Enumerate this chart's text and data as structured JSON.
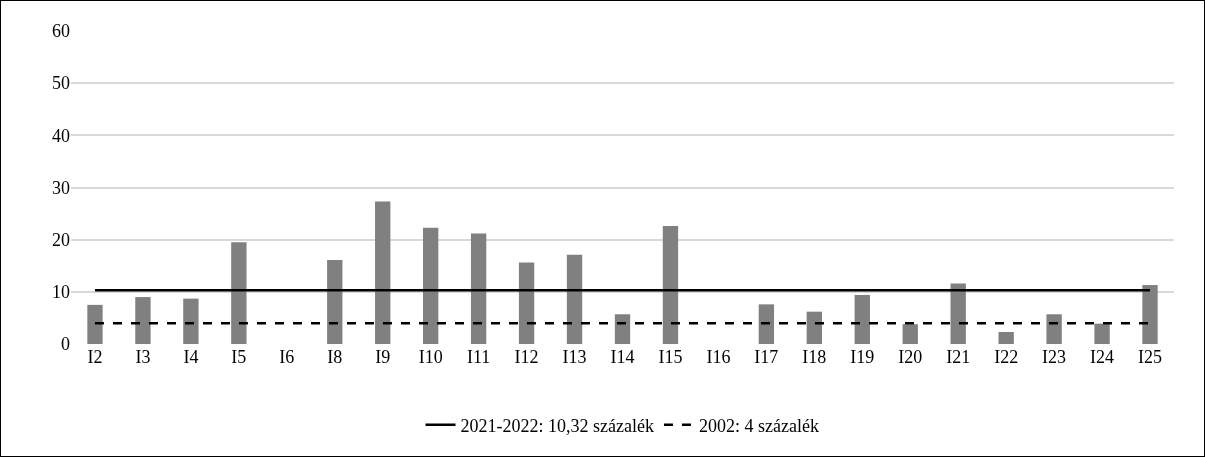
{
  "chart_data": {
    "type": "bar",
    "categories": [
      "I2",
      "I3",
      "I4",
      "I5",
      "I6",
      "I8",
      "I9",
      "I10",
      "I11",
      "I12",
      "I13",
      "I14",
      "I15",
      "I16",
      "I17",
      "I18",
      "I19",
      "I20",
      "I21",
      "I22",
      "I23",
      "I24",
      "I25"
    ],
    "values": [
      7.5,
      9,
      8.7,
      19.5,
      0,
      16.1,
      27.3,
      22.3,
      21.2,
      15.6,
      17.1,
      5.7,
      22.6,
      0,
      7.6,
      6.2,
      9.4,
      3.8,
      11.6,
      2.3,
      5.7,
      3.9,
      11.3
    ],
    "color": "#808080",
    "ylim": [
      0,
      60
    ],
    "yticks": [
      0,
      10,
      20,
      30,
      40,
      50,
      60
    ],
    "grid": "y",
    "legend": "bottom",
    "ref_lines": [
      {
        "axis": "y",
        "value": 10.32,
        "label": "2021-2022: 10,32 százalék",
        "color": "#000000",
        "line_style": "solid"
      },
      {
        "axis": "y",
        "value": 4,
        "label": "2002: 4 százalék",
        "color": "#000000",
        "line_style": "dashed"
      }
    ]
  }
}
